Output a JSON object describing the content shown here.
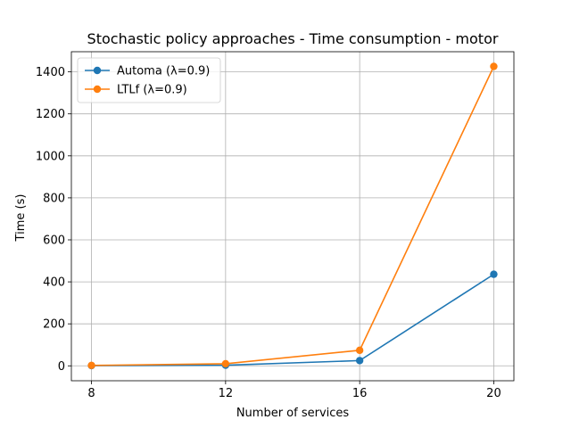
{
  "chart_data": {
    "type": "line",
    "title": "Stochastic policy approaches - Time consumption - motor",
    "xlabel": "Number of services",
    "ylabel": "Time (s)",
    "x": [
      8,
      12,
      16,
      20
    ],
    "xticks": [
      "8",
      "12",
      "16",
      "20"
    ],
    "yticks": [
      "0",
      "200",
      "400",
      "600",
      "800",
      "1000",
      "1200",
      "1400"
    ],
    "xlim": [
      7.4,
      20.6
    ],
    "ylim": [
      -71,
      1496
    ],
    "grid": true,
    "legend_position": "top-left",
    "series": [
      {
        "name": "Automa (λ=0.9)",
        "values": [
          1,
          3,
          25,
          436
        ],
        "color": "#1f77b4"
      },
      {
        "name": "LTLf (λ=0.9)",
        "values": [
          2,
          10,
          74,
          1426
        ],
        "color": "#ff7f0e"
      }
    ],
    "colors": {
      "grid": "#b0b0b0",
      "axis": "#000000"
    }
  }
}
